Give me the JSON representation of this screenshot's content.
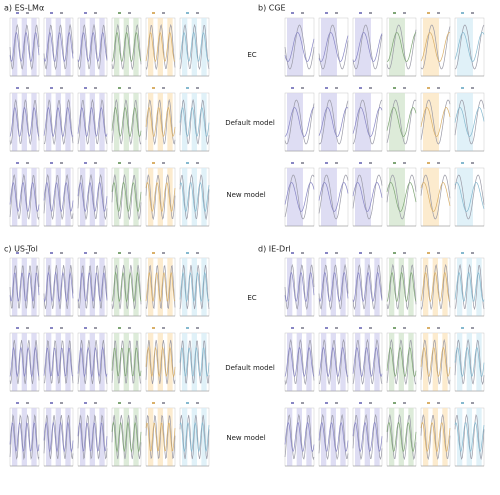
{
  "figure": {
    "panels": [
      {
        "title": "a) ES-LMα"
      },
      {
        "title": "b) CGE"
      },
      {
        "title": "c) US-Tol"
      },
      {
        "title": "d) IE-Drl"
      }
    ],
    "row_labels_top": [
      "EC",
      "Default model",
      "New model"
    ],
    "row_labels_bottom": [
      "EC",
      "Default model",
      "New model"
    ]
  }
}
